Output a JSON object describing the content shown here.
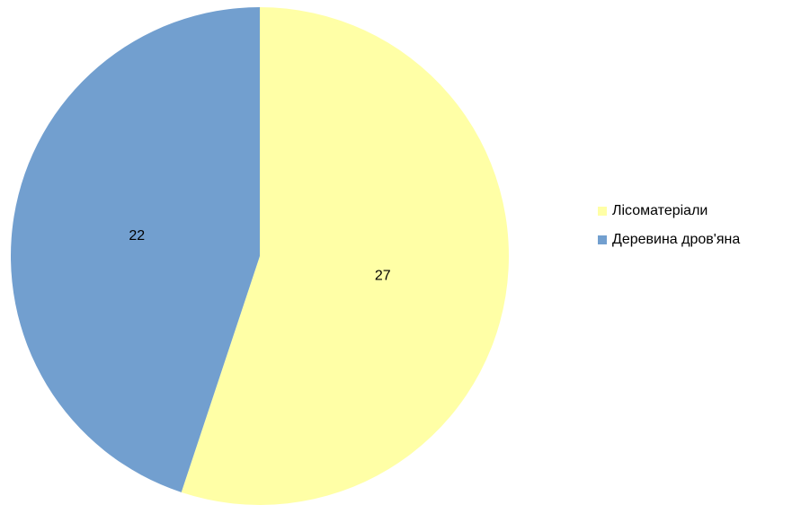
{
  "chart_data": {
    "type": "pie",
    "categories": [
      "Лісоматеріали",
      "Деревина дров'яна"
    ],
    "values": [
      27,
      22
    ],
    "colors": [
      "#ffffa6",
      "#729fcf"
    ],
    "legend": "right"
  }
}
